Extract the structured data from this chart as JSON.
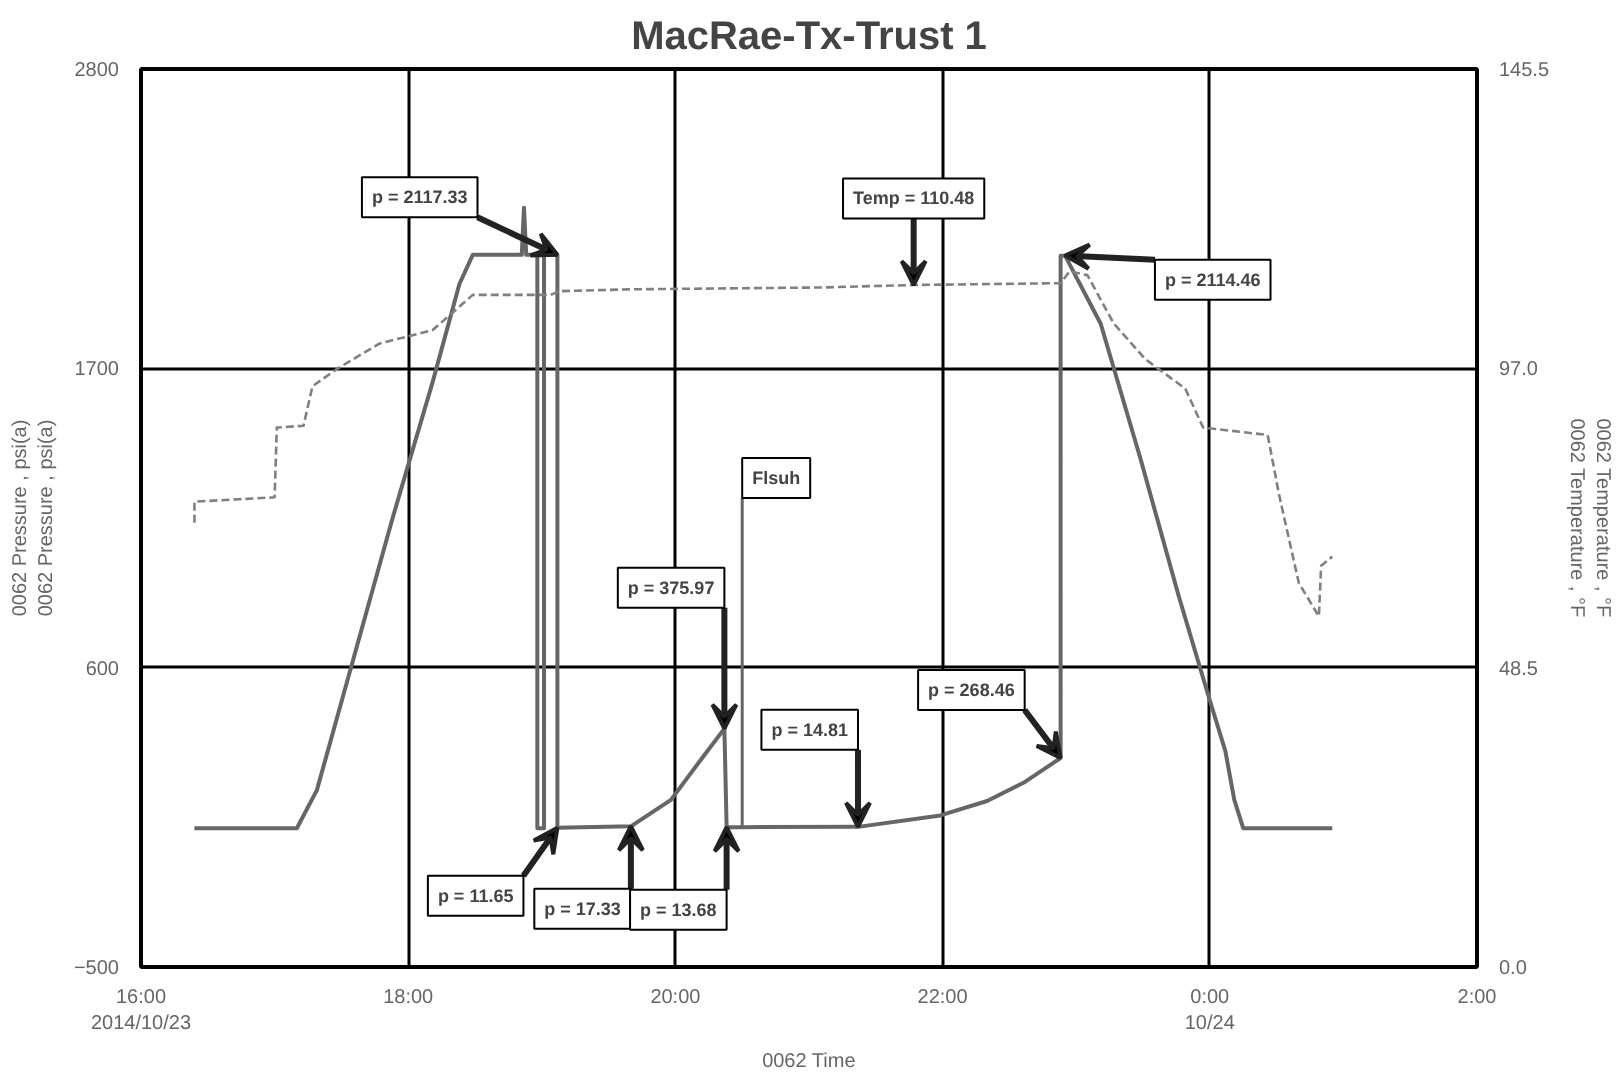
{
  "chart_data": {
    "type": "line",
    "title": "MacRae-Tx-Trust 1",
    "xlabel": "0062 Time",
    "ylabel": "0062 Pressure , psi(a)\n0062 Pressure , psi(a)",
    "y2label": "0062 Temperature , °F\n0062 Temperature , °F",
    "xlim": [
      "2014-10-23T16:00",
      "2014-10-24T02:00"
    ],
    "xticks": [
      {
        "value": "2014-10-23T16:00",
        "label": "16:00\n2014/10/23"
      },
      {
        "value": "2014-10-23T18:00",
        "label": "18:00"
      },
      {
        "value": "2014-10-23T20:00",
        "label": "20:00"
      },
      {
        "value": "2014-10-23T22:00",
        "label": "22:00"
      },
      {
        "value": "2014-10-24T00:00",
        "label": "0:00\n10/24"
      },
      {
        "value": "2014-10-24T02:00",
        "label": "2:00"
      }
    ],
    "ylim": [
      -500,
      2800
    ],
    "yticks": [
      -500,
      600,
      1700,
      2800
    ],
    "y2lim": [
      0,
      145.5
    ],
    "y2ticks": [
      {
        "value": 0,
        "label": "0.0"
      },
      48.5,
      {
        "value": 97,
        "label": "97.0"
      },
      145.5
    ],
    "grid": true,
    "marker": "none",
    "series": [
      {
        "color": "#666666",
        "line_style": "solid",
        "x": [
          "2014-10-23T16:24",
          "2014-10-23T17:10",
          "2014-10-23T17:19",
          "2014-10-23T17:36",
          "2014-10-23T17:53",
          "2014-10-23T18:11",
          "2014-10-23T18:23",
          "2014-10-23T18:29",
          "2014-10-23T18:51",
          "2014-10-23T18:52",
          "2014-10-23T18:53",
          "2014-10-23T18:58",
          "2014-10-23T18:58",
          "2014-10-23T19:01",
          "2014-10-23T19:01",
          "2014-10-23T19:07",
          "2014-10-23T19:07",
          "2014-10-23T19:40",
          "2014-10-23T19:58",
          "2014-10-23T20:11",
          "2014-10-23T20:22",
          "2014-10-23T20:23",
          "2014-10-23T20:30",
          "2014-10-23T21:22",
          "2014-10-23T21:59",
          "2014-10-23T22:20",
          "2014-10-23T22:37",
          "2014-10-23T22:53",
          "2014-10-23T22:53",
          "2014-10-23T22:55",
          "2014-10-23T23:11",
          "2014-10-23T23:29",
          "2014-10-23T23:46",
          "2014-10-23T23:59",
          "2014-10-24T00:07",
          "2014-10-24T00:11",
          "2014-10-24T00:15",
          "2014-10-24T00:55"
        ],
        "values": [
          10,
          10,
          150,
          650,
          1150,
          1650,
          2010,
          2117,
          2117,
          2290,
          2117,
          2117,
          10,
          10,
          2117,
          2117,
          12,
          17,
          114,
          257,
          376,
          14,
          14,
          15,
          57,
          110,
          180,
          268,
          2114,
          2114,
          1864,
          1364,
          864,
          507,
          293,
          114,
          10,
          10
        ]
      },
      {
        "color": "#808080",
        "line_style": "dashed",
        "axis": "y2",
        "x": [
          "2014-10-23T16:24",
          "2014-10-23T16:24",
          "2014-10-23T17:00",
          "2014-10-23T17:01",
          "2014-10-23T17:13",
          "2014-10-23T17:17",
          "2014-10-23T17:28",
          "2014-10-23T17:47",
          "2014-10-23T18:11",
          "2014-10-23T18:29",
          "2014-10-23T19:04",
          "2014-10-23T19:08",
          "2014-10-23T19:39",
          "2014-10-23T21:05",
          "2014-10-23T21:47",
          "2014-10-23T22:53",
          "2014-10-23T22:57",
          "2014-10-23T23:05",
          "2014-10-23T23:17",
          "2014-10-23T23:31",
          "2014-10-23T23:49",
          "2014-10-23T23:57",
          "2014-10-24T00:26",
          "2014-10-24T00:31",
          "2014-10-24T00:40",
          "2014-10-24T00:49",
          "2014-10-24T00:50",
          "2014-10-24T00:55"
        ],
        "values": [
          72.0,
          75.4,
          76.1,
          87.4,
          87.7,
          94.1,
          96.9,
          101.0,
          103.2,
          108.9,
          108.9,
          109.5,
          109.8,
          110.1,
          110.5,
          110.8,
          112.7,
          112.1,
          104.2,
          98.5,
          93.7,
          87.4,
          86.2,
          76.7,
          62.2,
          56.8,
          65.0,
          66.5
        ]
      }
    ],
    "annotations": [
      {
        "text": "p = 2117.33",
        "x": "2014-10-23T19:07",
        "y": 2117.33
      },
      {
        "text": "Temp = 110.48",
        "x": "2014-10-23T21:47",
        "y": 2006
      },
      {
        "text": "p = 2114.46",
        "x": "2014-10-23T22:55",
        "y": 2114.46
      },
      {
        "text": "Flsuh",
        "x": "2014-10-23T20:30",
        "y": 14
      },
      {
        "text": "p = 375.97",
        "x": "2014-10-23T20:22",
        "y": 375.97
      },
      {
        "text": "p = 11.65",
        "x": "2014-10-23T19:07",
        "y": 11.65
      },
      {
        "text": "p = 17.33",
        "x": "2014-10-23T19:40",
        "y": 17.33
      },
      {
        "text": "p = 13.68",
        "x": "2014-10-23T20:23",
        "y": 13.68
      },
      {
        "text": "p = 14.81",
        "x": "2014-10-23T21:22",
        "y": 14.81
      },
      {
        "text": "p = 268.46",
        "x": "2014-10-23T22:53",
        "y": 268.46
      }
    ]
  }
}
